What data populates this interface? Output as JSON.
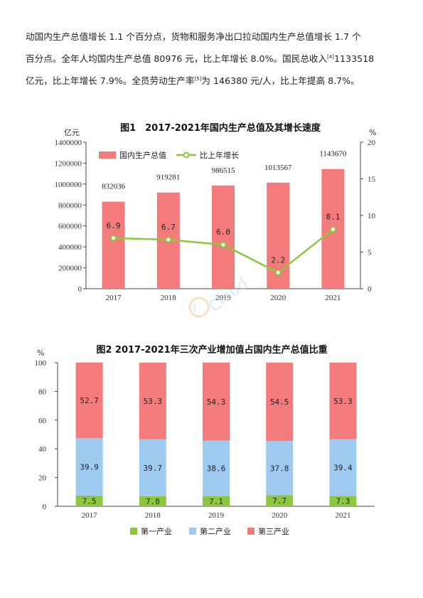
{
  "paragraph": {
    "line1": "动国内生产总值增长 1.1 个百分点，货物和服务净出口拉动国内生产总值增长 1.7 个",
    "line2a": "百分点。全年人均国内生产总值 80976 元，比上年增长 8.0%。国民总收入",
    "line2sup": "[4]",
    "line2b": "1133518",
    "line3a": "亿元，比上年增长 7.9%。全员劳动生产率",
    "line3sup": "[5]",
    "line3b": "为 146380 元/人，比上年提高 8.7%。"
  },
  "colors": {
    "bar_red": "#f47b7b",
    "line_green": "#8dc63f",
    "primary": "#8dc63f",
    "secondary": "#9ecbef",
    "tertiary": "#f47b7b"
  },
  "watermark": {
    "text": "Cloud"
  },
  "chart_data": [
    {
      "type": "bar",
      "title": "图1　2017-2021年国内生产总值及其增长速度",
      "ylabel": "亿元",
      "y2label": "%",
      "categories": [
        "2017",
        "2018",
        "2019",
        "2020",
        "2021"
      ],
      "ylim": [
        0,
        1400000
      ],
      "yticks": [
        "0",
        "200000",
        "400000",
        "600000",
        "800000",
        "1000000",
        "1200000",
        "1400000"
      ],
      "y2lim": [
        0,
        20
      ],
      "y2ticks": [
        "0",
        "5",
        "10",
        "15",
        "20"
      ],
      "legend_position": "top-left",
      "grid": false,
      "series": [
        {
          "name": "国内生产总值",
          "type": "bar",
          "values": [
            832036,
            919281,
            986515,
            1013567,
            1143670
          ],
          "labels": [
            "832036",
            "919281",
            "986515",
            "1013567",
            "1143670"
          ]
        },
        {
          "name": "比上年增长",
          "type": "line",
          "axis": "right",
          "values": [
            6.9,
            6.7,
            6.0,
            2.2,
            8.1
          ],
          "labels": [
            "6.9",
            "6.7",
            "6.0",
            "2.2",
            "8.1"
          ]
        }
      ]
    },
    {
      "type": "bar",
      "stacked": true,
      "title": "图2 2017-2021年三次产业增加值占国内生产总值比重",
      "ylabel": "%",
      "categories": [
        "2017",
        "2018",
        "2019",
        "2020",
        "2021"
      ],
      "ylim": [
        0,
        100
      ],
      "yticks": [
        "0",
        "20",
        "40",
        "60",
        "80",
        "100"
      ],
      "legend_position": "bottom",
      "grid": false,
      "series": [
        {
          "name": "第一产业",
          "values": [
            7.5,
            7.0,
            7.1,
            7.7,
            7.3
          ],
          "labels": [
            "7.5",
            "7.0",
            "7.1",
            "7.7",
            "7.3"
          ]
        },
        {
          "name": "第二产业",
          "values": [
            39.9,
            39.7,
            38.6,
            37.8,
            39.4
          ],
          "labels": [
            "39.9",
            "39.7",
            "38.6",
            "37.8",
            "39.4"
          ]
        },
        {
          "name": "第三产业",
          "values": [
            52.7,
            53.3,
            54.3,
            54.5,
            53.3
          ],
          "labels": [
            "52.7",
            "53.3",
            "54.3",
            "54.5",
            "53.3"
          ]
        }
      ]
    }
  ]
}
